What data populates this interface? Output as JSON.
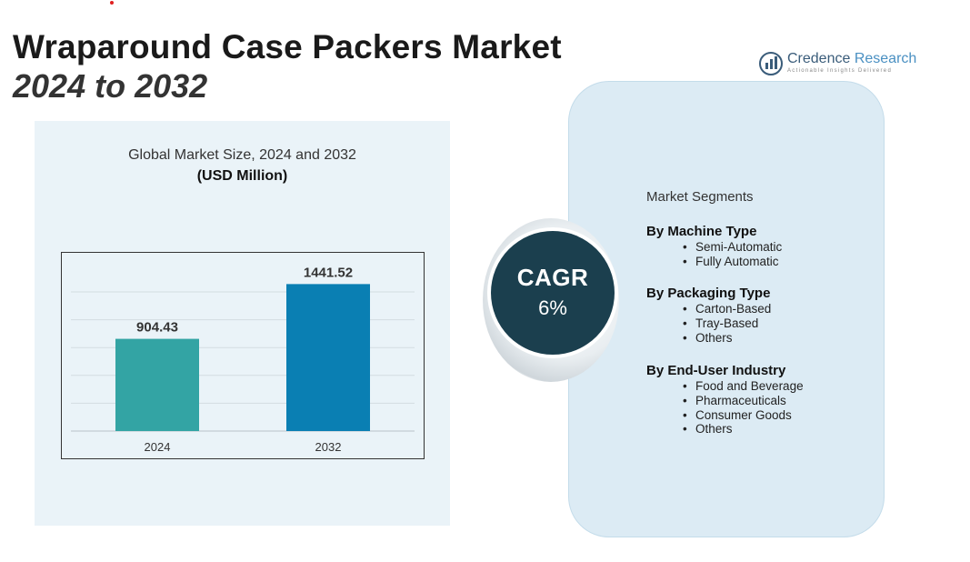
{
  "title": "Wraparound Case Packers Market",
  "subtitle": "2024 to 2032",
  "brand": {
    "name_part1": "Credence",
    "name_part2": " Research",
    "tagline": "Actionable Insights Delivered"
  },
  "chart_data": {
    "type": "bar",
    "title": "Global Market Size, 2024 and 2032",
    "unit": "(USD Million)",
    "categories": [
      "2024",
      "2032"
    ],
    "values": [
      904.43,
      1441.52
    ],
    "value_labels": [
      "904.43",
      "1441.52"
    ],
    "ylim": [
      0,
      1650
    ],
    "grid": true,
    "colors": [
      "#33a4a4",
      "#0a7fb3"
    ]
  },
  "cagr": {
    "label": "CAGR",
    "value": "6%"
  },
  "segments": {
    "title": "Market Segments",
    "groups": [
      {
        "heading": "By Machine Type",
        "items": [
          "Semi-Automatic",
          "Fully Automatic"
        ]
      },
      {
        "heading": "By Packaging Type",
        "items": [
          "Carton-Based",
          "Tray-Based",
          "Others"
        ]
      },
      {
        "heading": "By End-User Industry",
        "items": [
          "Food and Beverage",
          "Pharmaceuticals",
          "Consumer Goods",
          "Others"
        ]
      }
    ]
  }
}
